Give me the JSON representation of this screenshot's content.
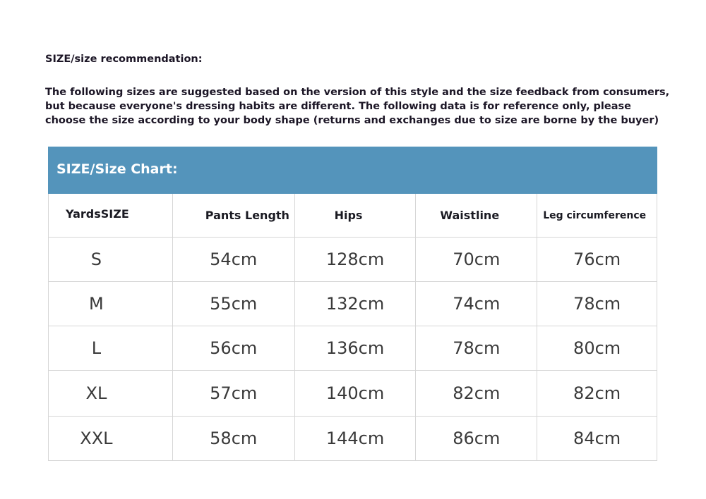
{
  "title": "SIZE/size recommendation:",
  "intro": [
    "The following sizes are suggested based on the version of this style and the size feedback from consumers,",
    "but because everyone's dressing habits are different. The following data is for reference only, please",
    "choose the size according to your body shape (returns and exchanges due to size are borne by the buyer)"
  ],
  "table": {
    "caption": "SIZE/Size Chart:",
    "accent": "#5494bb",
    "headers": [
      "YardsSIZE",
      "Pants Length",
      "Hips",
      "Waistline",
      "Leg circumference"
    ],
    "rows": [
      [
        "S",
        "54cm",
        "128cm",
        "70cm",
        "76cm"
      ],
      [
        "M",
        "55cm",
        "132cm",
        "74cm",
        "78cm"
      ],
      [
        "L",
        "56cm",
        "136cm",
        "78cm",
        "80cm"
      ],
      [
        "XL",
        "57cm",
        "140cm",
        "82cm",
        "82cm"
      ],
      [
        "XXL",
        "58cm",
        "144cm",
        "86cm",
        "84cm"
      ]
    ]
  }
}
